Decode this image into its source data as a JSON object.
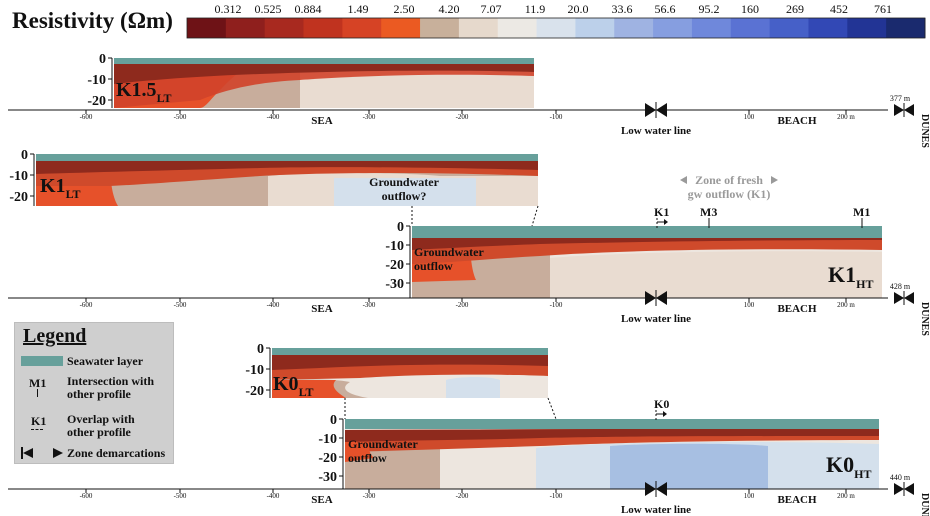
{
  "title": "Resistivity (Ωm)",
  "colorbar": {
    "ticks": [
      "0.312",
      "0.525",
      "0.884",
      "1.49",
      "2.50",
      "4.20",
      "7.07",
      "11.9",
      "20.0",
      "33.6",
      "56.6",
      "95.2",
      "160",
      "269",
      "452",
      "761"
    ],
    "colors": [
      "#6e1216",
      "#8f1f1d",
      "#a8291f",
      "#c0331f",
      "#d64325",
      "#eb5a22",
      "#c8b09b",
      "#e6d9cc",
      "#ece9e4",
      "#d9e2ec",
      "#bcd0ea",
      "#9fb3e2",
      "#869ee0",
      "#6f88db",
      "#5a72d3",
      "#4660c8",
      "#3248b5",
      "#223495",
      "#1a2a6e"
    ]
  },
  "axes": {
    "x_ticks": [
      "-600",
      "-500",
      "-400",
      "-300",
      "-200",
      "-100",
      "100",
      "200 m"
    ],
    "depth_ticks_a": [
      "0",
      "-10",
      "-20"
    ],
    "depth_ticks_b": [
      "0",
      "-10",
      "-20",
      "-30"
    ],
    "lengths": [
      "377 m",
      "428 m",
      "440 m"
    ]
  },
  "zones": {
    "sea": "SEA",
    "low_water": "Low water line",
    "beach": "BEACH",
    "dunes": "DUNES"
  },
  "profiles": {
    "k15lt": {
      "name": "K1.5",
      "sub": "LT"
    },
    "k1lt": {
      "name": "K1",
      "sub": "LT"
    },
    "k1ht": {
      "name": "K1",
      "sub": "HT"
    },
    "k0lt": {
      "name": "K0",
      "sub": "LT"
    },
    "k0ht": {
      "name": "K0",
      "sub": "HT"
    }
  },
  "annotations": {
    "gw_outflow_q_1": "Groundwater",
    "gw_outflow_q_2": "outflow?",
    "gw_outflow_1": "Groundwater",
    "gw_outflow_2": "outflow",
    "fresh_zone_1": "Zone of fresh",
    "fresh_zone_2": "gw outflow (K1)",
    "k1_marker": "K1",
    "m3_marker": "M3",
    "m1_marker": "M1",
    "k0_marker": "K0"
  },
  "legend": {
    "title": "Legend",
    "seawater": "Seawater layer",
    "intersection_1": "Intersection with",
    "intersection_2": "other profile",
    "overlap_1": "Overlap with",
    "overlap_2": "other profile",
    "demarcations": "Zone demarcations",
    "m1_sym": "M1",
    "k1_sym": "K1"
  },
  "colors": {
    "seawater": "#67a09b",
    "dark_red": "#8e2a1d",
    "red": "#c43a20",
    "orange": "#e6512a",
    "tan": "#c8ad9c",
    "beige": "#e9dcd1",
    "light": "#ede6df",
    "pale_blue": "#d4e0ec",
    "blue": "#bcd0ea",
    "mid_blue": "#a7bfe2"
  }
}
